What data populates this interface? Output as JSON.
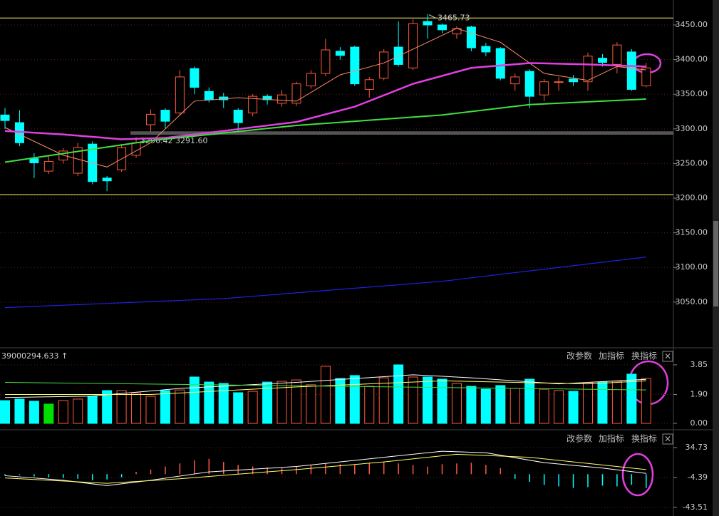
{
  "chart_data": [
    {
      "type": "candlestick",
      "open": [
        3320,
        3309,
        3257,
        3239,
        3255,
        3236,
        3278,
        3229,
        3241,
        3262,
        3306,
        3327,
        3323,
        3387,
        3354,
        3346,
        3327,
        3323,
        3347,
        3337,
        3337,
        3362,
        3380,
        3412,
        3418,
        3357,
        3373,
        3418,
        3388,
        3455,
        3450,
        3437,
        3447,
        3419,
        3416,
        3365,
        3383,
        3349,
        3367,
        3372,
        3368,
        3402,
        3393,
        3411,
        3362
      ],
      "high": [
        3330,
        3327,
        3265,
        3262,
        3272,
        3280,
        3282,
        3232,
        3278,
        3288,
        3328,
        3330,
        3385,
        3390,
        3360,
        3352,
        3330,
        3350,
        3350,
        3356,
        3368,
        3385,
        3430,
        3418,
        3420,
        3375,
        3415,
        3455,
        3458,
        3465.73,
        3452,
        3448,
        3449,
        3424,
        3418,
        3380,
        3386,
        3372,
        3375,
        3378,
        3410,
        3408,
        3425,
        3415,
        3395
      ],
      "low": [
        3300,
        3275,
        3229,
        3235,
        3250,
        3232,
        3220,
        3210,
        3238,
        3258,
        3296,
        3300,
        3320,
        3350,
        3338,
        3330,
        3296,
        3318,
        3335,
        3332,
        3333,
        3358,
        3376,
        3400,
        3362,
        3345,
        3370,
        3390,
        3385,
        3430,
        3438,
        3430,
        3412,
        3405,
        3370,
        3355,
        3330,
        3340,
        3355,
        3362,
        3355,
        3390,
        3380,
        3355,
        3360
      ],
      "close": [
        3312,
        3280,
        3251,
        3253,
        3268,
        3273,
        3224,
        3225,
        3273,
        3280,
        3321,
        3311,
        3375,
        3360,
        3342,
        3342,
        3309,
        3347,
        3342,
        3349,
        3365,
        3380,
        3414,
        3406,
        3365,
        3371,
        3411,
        3393,
        3452,
        3450,
        3443,
        3445,
        3417,
        3411,
        3373,
        3375,
        3347,
        3368,
        3368,
        3368,
        3405,
        3396,
        3421,
        3357,
        3388
      ],
      "up_color": "#ff5a3c",
      "down_color": "#00ffff",
      "peak_label": {
        "index": 29,
        "label": "3465.73"
      },
      "hlines": [
        {
          "value": 3460,
          "color": "#ffff66"
        },
        {
          "value": 3205,
          "color": "#ffff66"
        }
      ],
      "level_band": {
        "start_index": 9,
        "values": [
          3296.42,
          3291.6
        ],
        "label": "3296.42 3291.60",
        "color": "#555555"
      },
      "lines": [
        {
          "color": "#ff8c6a",
          "width": 1,
          "x": [
            0,
            4,
            7,
            10,
            13,
            16,
            20,
            23,
            26,
            29,
            31,
            34,
            37,
            40,
            42,
            44
          ],
          "values": [
            3302,
            3262,
            3245,
            3280,
            3340,
            3345,
            3340,
            3378,
            3395,
            3425,
            3445,
            3425,
            3380,
            3370,
            3390,
            3385
          ]
        },
        {
          "color": "#e040e0",
          "width": 2.5,
          "x": [
            0,
            4,
            8,
            11,
            15,
            20,
            24,
            28,
            32,
            36,
            40,
            44
          ],
          "values": [
            3297,
            3292,
            3285,
            3287,
            3297,
            3310,
            3332,
            3365,
            3388,
            3395,
            3393,
            3390
          ]
        },
        {
          "color": "#40e040",
          "width": 2,
          "x": [
            0,
            10,
            20,
            30,
            36,
            44
          ],
          "values": [
            3252,
            3283,
            3305,
            3320,
            3335,
            3343
          ]
        },
        {
          "color": "#2020e0",
          "width": 1.2,
          "x": [
            0,
            15,
            30,
            44
          ],
          "values": [
            3042,
            3055,
            3080,
            3115
          ]
        }
      ],
      "ylim": [
        2984,
        3486
      ],
      "yticks": [
        {
          "value": 3450,
          "label": "3450.00"
        },
        {
          "value": 3400,
          "label": "3400.00"
        },
        {
          "value": 3350,
          "label": "3350.00"
        },
        {
          "value": 3300,
          "label": "3300.00"
        },
        {
          "value": 3250,
          "label": "3250.00"
        },
        {
          "value": 3200,
          "label": "3200.00"
        },
        {
          "value": 3150,
          "label": "3150.00"
        },
        {
          "value": 3100,
          "label": "3100.00"
        },
        {
          "value": 3050,
          "label": "3050.00"
        }
      ],
      "grid": true
    },
    {
      "type": "bar",
      "header": "39000294.633 ↑",
      "header_color": "#40e040",
      "tools": [
        "改参数",
        "加指标",
        "换指标",
        "×"
      ],
      "values": [
        1.5,
        1.6,
        1.46,
        1.27,
        1.5,
        1.6,
        1.78,
        2.16,
        2.16,
        2.0,
        1.78,
        2.16,
        2.2,
        3.05,
        2.72,
        2.63,
        2.02,
        2.11,
        2.72,
        2.77,
        2.86,
        2.54,
        3.76,
        2.96,
        3.15,
        2.44,
        3.0,
        3.85,
        3.05,
        3.05,
        2.91,
        2.63,
        2.44,
        2.25,
        2.49,
        2.3,
        2.91,
        2.25,
        2.16,
        2.11,
        2.68,
        2.72,
        2.77,
        3.24,
        2.96
      ],
      "special_color": {
        "index": 3,
        "color": "#00e000"
      },
      "lines": [
        {
          "color": "#ffffff",
          "width": 1,
          "x": [
            0,
            6,
            12,
            20,
            28,
            32,
            38,
            44
          ],
          "values": [
            1.7,
            1.8,
            2.3,
            2.7,
            3.2,
            3.0,
            2.6,
            2.9
          ]
        },
        {
          "color": "#ffff66",
          "width": 1,
          "x": [
            0,
            10,
            20,
            30,
            40,
            44
          ],
          "values": [
            1.9,
            1.9,
            2.4,
            2.8,
            2.6,
            2.8
          ]
        },
        {
          "color": "#40e040",
          "width": 1,
          "x": [
            0,
            44
          ],
          "values": [
            2.7,
            2.2
          ]
        }
      ],
      "ylim": [
        -0.42,
        4.88
      ],
      "yticks": [
        3.85,
        {
          "value": 1.9,
          "label": "1.90"
        },
        {
          "value": 0,
          "label": "0.00"
        }
      ],
      "grid": true
    },
    {
      "type": "macd",
      "tools": [
        "改参数",
        "加指标",
        "换指标",
        "×"
      ],
      "values": [
        -2,
        -1,
        -3,
        -4,
        -5,
        -6,
        -8,
        -7,
        -4,
        3,
        6,
        10,
        14,
        18,
        20,
        16,
        12,
        10,
        9,
        8,
        10,
        12,
        14,
        13,
        12,
        15,
        16,
        14,
        12,
        10,
        13,
        14,
        15,
        12,
        8,
        -6,
        -10,
        -14,
        -16,
        -18,
        -17,
        -15,
        -16,
        -14,
        -18
      ],
      "lines": [
        {
          "color": "#ffffff",
          "width": 1,
          "x": [
            0,
            4,
            7,
            10,
            14,
            20,
            26,
            30,
            33,
            37,
            41,
            44
          ],
          "values": [
            -2,
            -8,
            -15,
            -8,
            3,
            10,
            22,
            30,
            28,
            15,
            8,
            1
          ]
        },
        {
          "color": "#ffff66",
          "width": 1,
          "x": [
            0,
            7,
            12,
            20,
            26,
            31,
            36,
            41,
            44
          ],
          "values": [
            -5,
            -12,
            -6,
            6,
            16,
            26,
            22,
            12,
            6
          ]
        }
      ],
      "ylim": [
        -52.8,
        55.2
      ],
      "yticks": [
        34.73,
        -4.39,
        -43.51
      ],
      "grid": true
    }
  ]
}
